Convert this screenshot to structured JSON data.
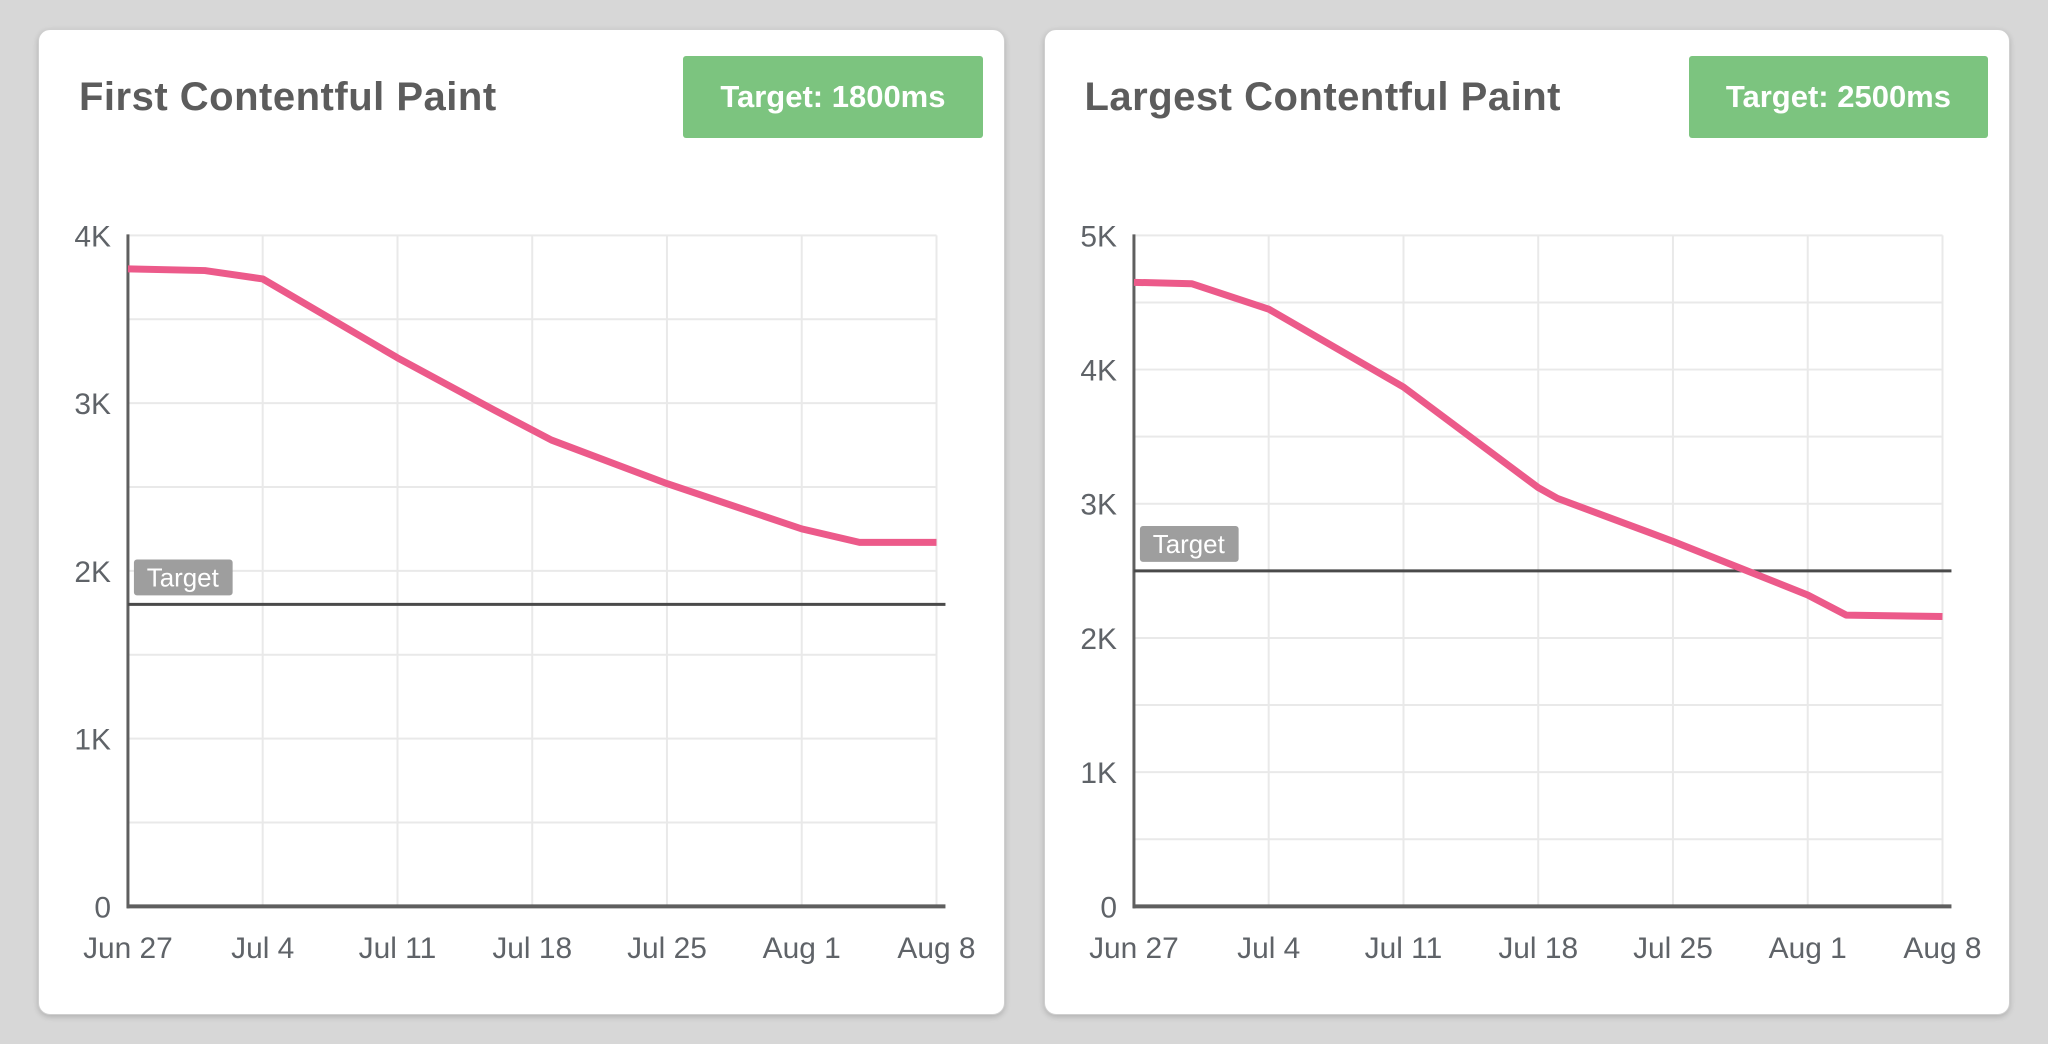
{
  "page": {
    "background_color": "#d7d7d7",
    "card_background": "#ffffff"
  },
  "colors": {
    "series_line": "#ec5a8a",
    "target_badge_bg": "#7cc47f",
    "target_badge_text": "#ffffff",
    "target_line": "#4a4a4a",
    "target_line_badge_bg": "#9e9e9e",
    "target_line_badge_text": "#ffffff",
    "gridline": "#e9e9e9",
    "axis": "#5f5f5f",
    "tick_label": "#5f6368",
    "title_text": "#5c5c5c"
  },
  "chart_data": [
    {
      "type": "line",
      "title": "First Contentful Paint",
      "target_badge": "Target: 1800ms",
      "target_value": 1800,
      "target_line_label": "Target",
      "y_max": 4000,
      "grid_step": 500,
      "ylim": [
        0,
        4000
      ],
      "grid": true,
      "y_ticks": [
        {
          "value": 4000,
          "label": "4K"
        },
        {
          "value": 3000,
          "label": "3K"
        },
        {
          "value": 2000,
          "label": "2K"
        },
        {
          "value": 1000,
          "label": "1K"
        },
        {
          "value": 0,
          "label": "0"
        }
      ],
      "x_span_days": 42,
      "x_ticks": [
        {
          "day": 0,
          "label": "Jun 27"
        },
        {
          "day": 7,
          "label": "Jul 4"
        },
        {
          "day": 14,
          "label": "Jul 11"
        },
        {
          "day": 21,
          "label": "Jul 18"
        },
        {
          "day": 28,
          "label": "Jul 25"
        },
        {
          "day": 35,
          "label": "Aug 1"
        },
        {
          "day": 42,
          "label": "Aug 8"
        }
      ],
      "points": [
        [
          0,
          3800
        ],
        [
          4,
          3790
        ],
        [
          7,
          3740
        ],
        [
          14,
          3270
        ],
        [
          19,
          2960
        ],
        [
          22,
          2780
        ],
        [
          28,
          2520
        ],
        [
          35,
          2250
        ],
        [
          38,
          2170
        ],
        [
          42,
          2170
        ]
      ]
    },
    {
      "type": "line",
      "title": "Largest Contentful Paint",
      "target_badge": "Target: 2500ms",
      "target_value": 2500,
      "target_line_label": "Target",
      "y_max": 5000,
      "grid_step": 500,
      "ylim": [
        0,
        5000
      ],
      "grid": true,
      "y_ticks": [
        {
          "value": 5000,
          "label": "5K"
        },
        {
          "value": 4000,
          "label": "4K"
        },
        {
          "value": 3000,
          "label": "3K"
        },
        {
          "value": 2000,
          "label": "2K"
        },
        {
          "value": 1000,
          "label": "1K"
        },
        {
          "value": 0,
          "label": "0"
        }
      ],
      "x_span_days": 42,
      "x_ticks": [
        {
          "day": 0,
          "label": "Jun 27"
        },
        {
          "day": 7,
          "label": "Jul 4"
        },
        {
          "day": 14,
          "label": "Jul 11"
        },
        {
          "day": 21,
          "label": "Jul 18"
        },
        {
          "day": 28,
          "label": "Jul 25"
        },
        {
          "day": 35,
          "label": "Aug 1"
        },
        {
          "day": 42,
          "label": "Aug 8"
        }
      ],
      "points": [
        [
          0,
          4650
        ],
        [
          3,
          4640
        ],
        [
          7,
          4450
        ],
        [
          14,
          3870
        ],
        [
          21,
          3120
        ],
        [
          22,
          3040
        ],
        [
          28,
          2720
        ],
        [
          35,
          2320
        ],
        [
          37,
          2170
        ],
        [
          42,
          2160
        ]
      ]
    }
  ]
}
